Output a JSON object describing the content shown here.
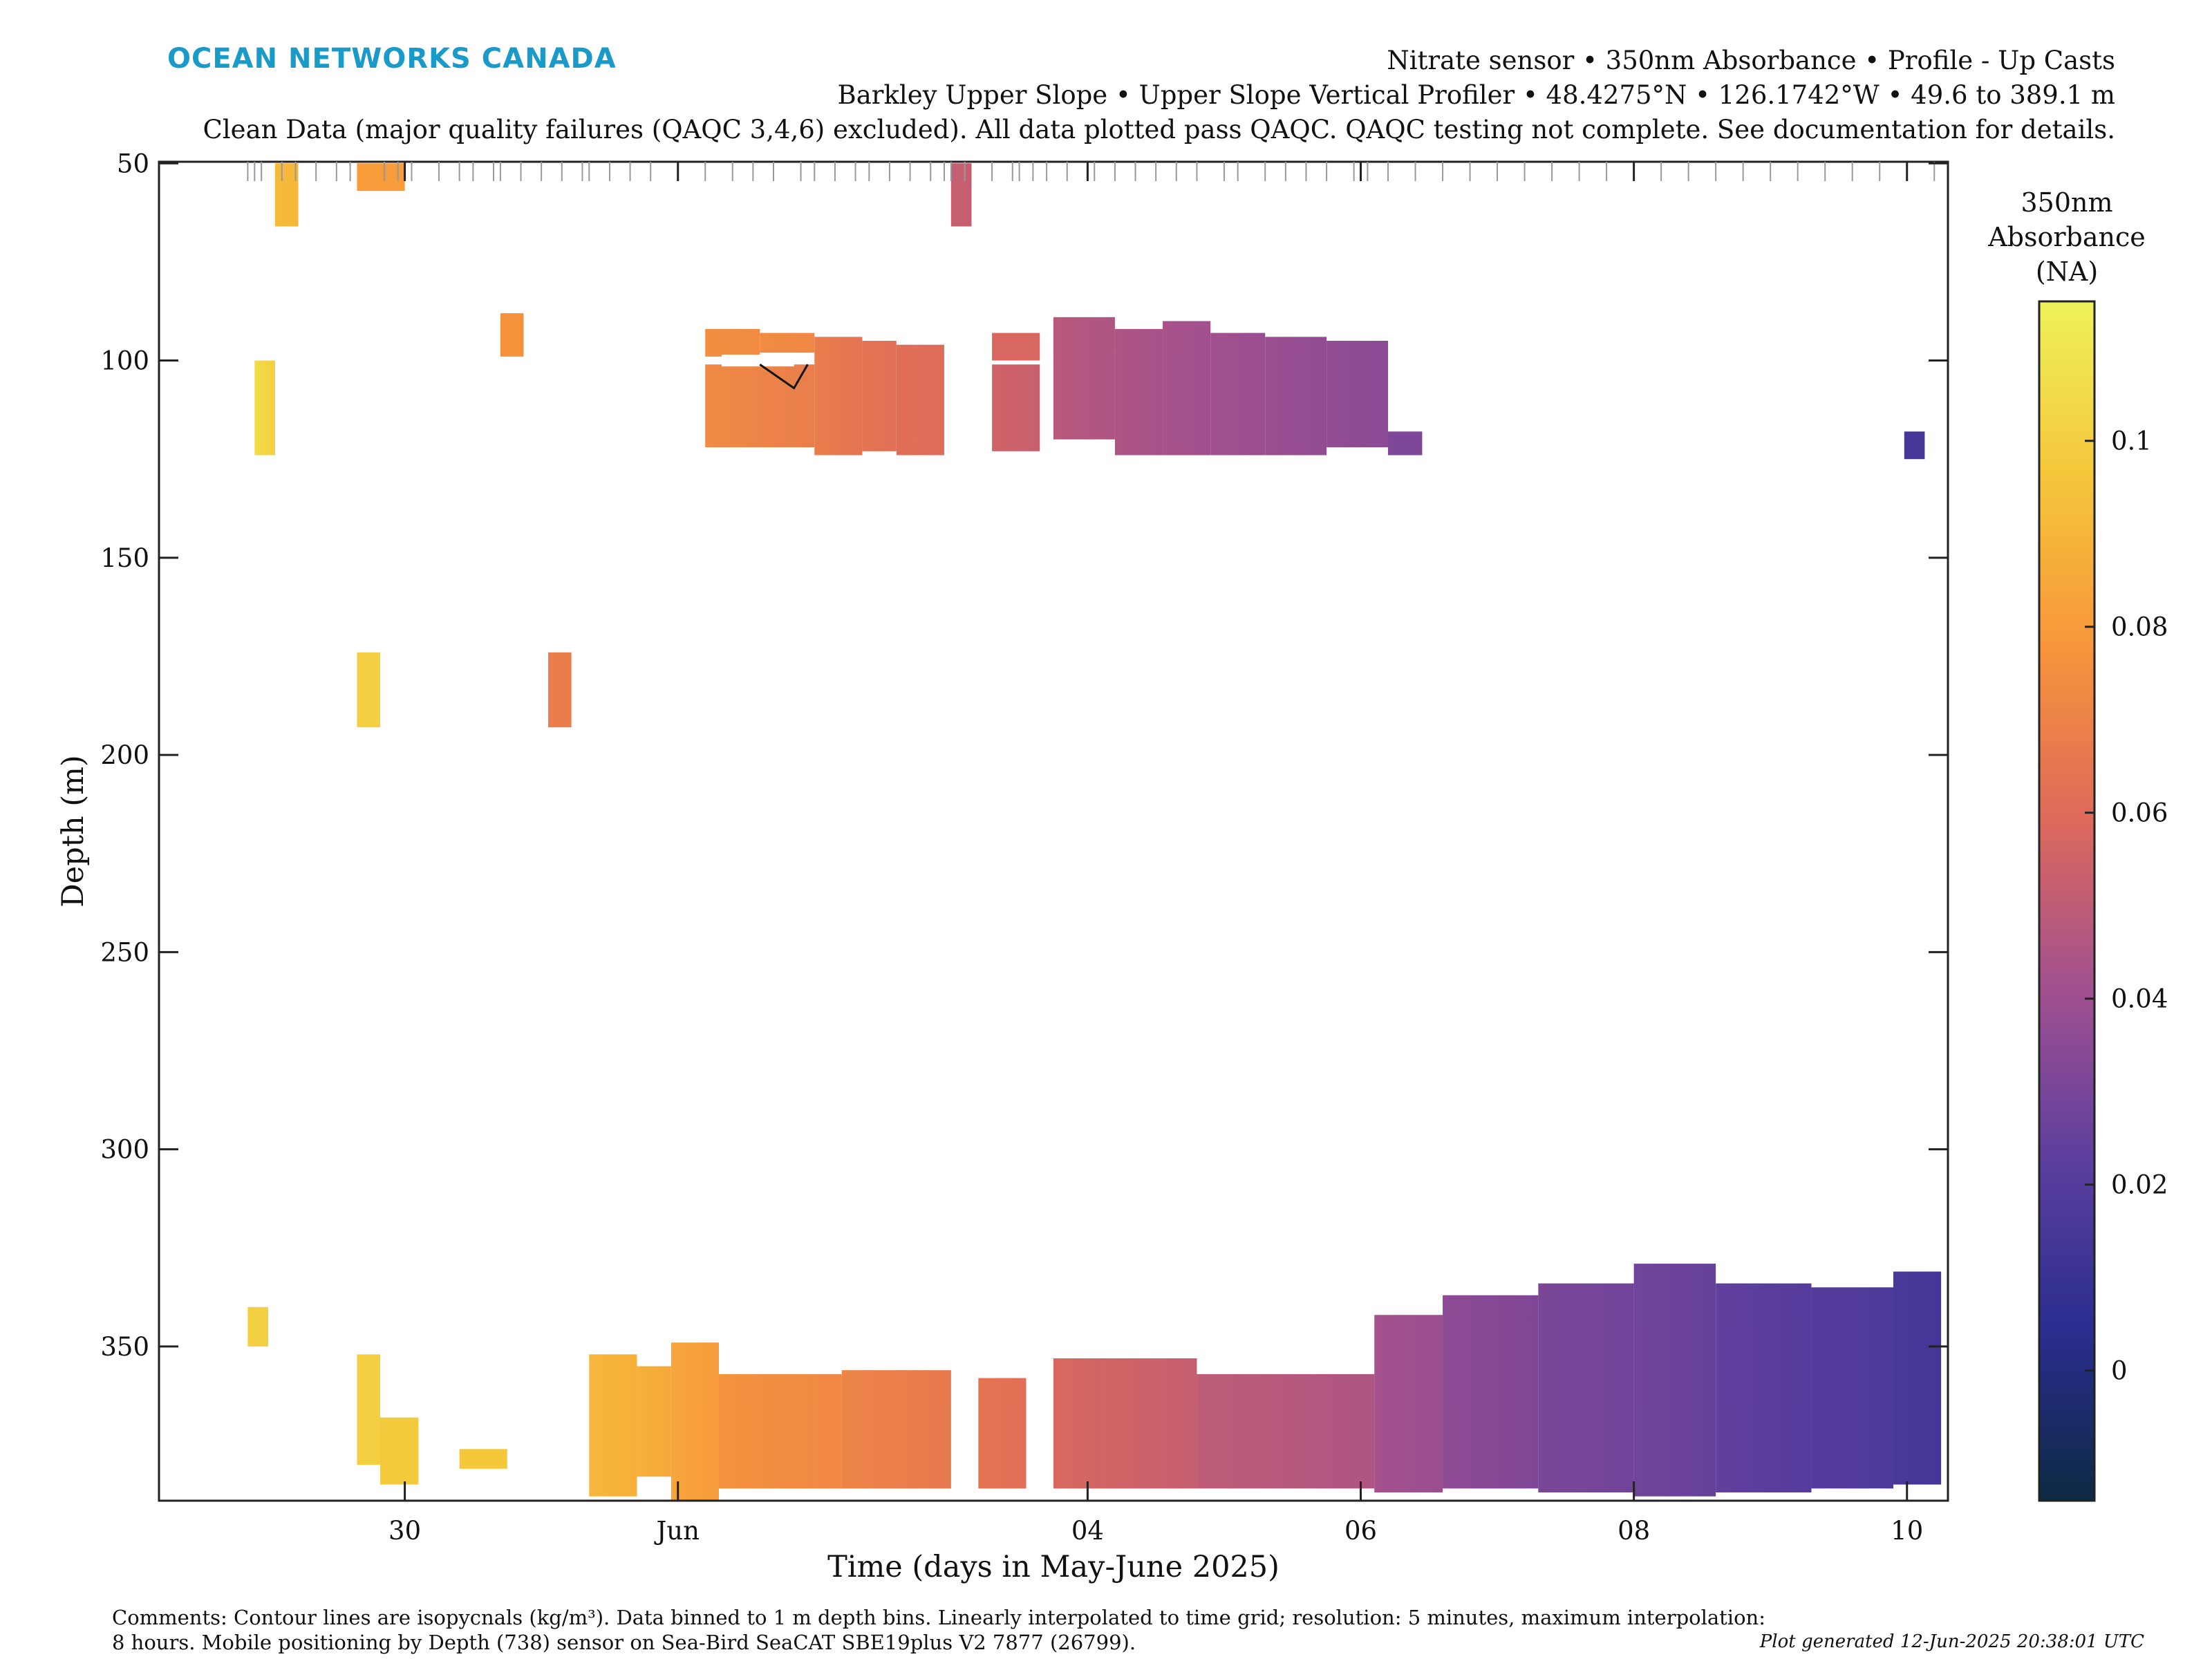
{
  "header": {
    "logo": "OCEAN NETWORKS CANADA",
    "line1": "Nitrate sensor • 350nm Absorbance • Profile - Up Casts",
    "line2": "Barkley Upper Slope • Upper Slope Vertical Profiler • 48.4275°N • 126.1742°W • 49.6 to 389.1 m",
    "line3": "Clean Data (major quality failures (QAQC 3,4,6) excluded). All data plotted pass QAQC. QAQC testing not complete. See documentation for details."
  },
  "footer": {
    "comment1": "Comments: Contour lines are isopycnals (kg/m³). Data binned to 1 m depth bins. Linearly interpolated to time grid; resolution: 5 minutes, maximum interpolation:",
    "comment2": "8 hours. Mobile positioning by Depth (738) sensor on Sea-Bird SeaCAT SBE19plus V2 7877 (26799).",
    "generated": "Plot generated 12-Jun-2025 20:38:01 UTC"
  },
  "colors": {
    "scale": [
      "#0c2a43",
      "#2a2d8f",
      "#5d3f9e",
      "#a2508f",
      "#de6a5a",
      "#f7963b",
      "#f5c73b",
      "#eef25a"
    ]
  },
  "chart_data": {
    "type": "heatmap",
    "title": "",
    "xlabel": "Time (days in May-June 2025)",
    "ylabel": "Depth (m)",
    "x_unit": "days since 2025-05-29 00:00",
    "xlim": [
      -0.8,
      12.3
    ],
    "ylim": [
      389.1,
      49.6
    ],
    "y_reversed": true,
    "xticks": [
      {
        "value": 1,
        "label": "30"
      },
      {
        "value": 3,
        "label": "Jun"
      },
      {
        "value": 6,
        "label": "04"
      },
      {
        "value": 8,
        "label": "06"
      },
      {
        "value": 10,
        "label": "08"
      },
      {
        "value": 12,
        "label": "10"
      }
    ],
    "yticks": [
      50,
      100,
      150,
      200,
      250,
      300,
      350
    ],
    "colorbar": {
      "title": [
        "350nm",
        "Absorbance",
        "(NA)"
      ],
      "range": [
        -0.014,
        0.115
      ],
      "ticks": [
        0,
        0.02,
        0.04,
        0.06,
        0.08,
        0.1
      ],
      "tick_labels": [
        "0",
        "0.02",
        "0.04",
        "0.06",
        "0.08",
        "0.1"
      ]
    },
    "cast_times": [
      -0.15,
      -0.1,
      -0.05,
      0.1,
      0.2,
      0.35,
      0.5,
      0.6,
      0.85,
      0.95,
      1.0,
      1.05,
      1.25,
      1.4,
      1.5,
      1.65,
      1.7,
      1.85,
      2.0,
      2.15,
      2.3,
      2.35,
      2.5,
      2.65,
      2.8,
      3.0,
      3.2,
      3.4,
      3.55,
      3.7,
      3.9,
      4.0,
      4.15,
      4.3,
      4.4,
      4.55,
      4.7,
      4.85,
      4.95,
      5.0,
      5.1,
      5.3,
      5.45,
      5.5,
      5.6,
      5.7,
      5.85,
      6.0,
      6.05,
      6.2,
      6.35,
      6.5,
      6.65,
      6.8,
      7.0,
      7.1,
      7.3,
      7.45,
      7.6,
      7.75,
      7.95,
      8.0,
      8.05,
      8.2,
      8.4,
      8.6,
      8.8,
      9.0,
      9.2,
      9.4,
      9.6,
      9.8,
      10.0,
      10.2,
      10.4,
      10.6,
      10.8,
      11.0,
      11.2,
      11.4,
      11.6,
      11.8,
      12.0,
      12.2
    ],
    "segments": [
      {
        "t0": -0.1,
        "t1": 0.05,
        "d0": 100,
        "d1": 124,
        "v": 0.105,
        "v2": 0.1
      },
      {
        "t0": 0.05,
        "t1": 0.22,
        "d0": 50,
        "d1": 66,
        "v": 0.092,
        "v2": 0.09
      },
      {
        "t0": 0.65,
        "t1": 1.0,
        "d0": 50,
        "d1": 57,
        "v": 0.08,
        "v2": 0.08
      },
      {
        "t0": 0.65,
        "t1": 0.82,
        "d0": 174,
        "d1": 193,
        "v": 0.1,
        "v2": 0.1
      },
      {
        "t0": 1.7,
        "t1": 1.87,
        "d0": 88,
        "d1": 99,
        "v": 0.077,
        "v2": 0.077
      },
      {
        "t0": 2.05,
        "t1": 2.22,
        "d0": 174,
        "d1": 193,
        "v": 0.068,
        "v2": 0.068
      },
      {
        "t0": 3.2,
        "t1": 3.6,
        "d0": 92,
        "d1": 99,
        "v": 0.075,
        "v2": 0.074
      },
      {
        "t0": 3.6,
        "t1": 4.0,
        "d0": 93,
        "d1": 98,
        "v": 0.074,
        "v2": 0.072
      },
      {
        "t0": 3.2,
        "t1": 4.0,
        "d0": 101,
        "d1": 122,
        "v": 0.073,
        "v2": 0.068
      },
      {
        "t0": 4.0,
        "t1": 4.35,
        "d0": 94,
        "d1": 124,
        "v": 0.068,
        "v2": 0.064
      },
      {
        "t0": 4.35,
        "t1": 4.6,
        "d0": 95,
        "d1": 123,
        "v": 0.064,
        "v2": 0.062
      },
      {
        "t0": 4.6,
        "t1": 4.95,
        "d0": 96,
        "d1": 124,
        "v": 0.062,
        "v2": 0.06
      },
      {
        "t0": 5.0,
        "t1": 5.15,
        "d0": 50,
        "d1": 66,
        "v": 0.052,
        "v2": 0.052
      },
      {
        "t0": 5.3,
        "t1": 5.65,
        "d0": 93,
        "d1": 100,
        "v": 0.058,
        "v2": 0.058
      },
      {
        "t0": 5.3,
        "t1": 5.65,
        "d0": 101,
        "d1": 123,
        "v": 0.055,
        "v2": 0.053
      },
      {
        "t0": 5.75,
        "t1": 6.2,
        "d0": 89,
        "d1": 120,
        "v": 0.048,
        "v2": 0.045
      },
      {
        "t0": 6.2,
        "t1": 6.55,
        "d0": 92,
        "d1": 124,
        "v": 0.045,
        "v2": 0.043
      },
      {
        "t0": 6.55,
        "t1": 6.9,
        "d0": 90,
        "d1": 124,
        "v": 0.043,
        "v2": 0.041
      },
      {
        "t0": 6.9,
        "t1": 7.3,
        "d0": 93,
        "d1": 124,
        "v": 0.041,
        "v2": 0.039
      },
      {
        "t0": 7.3,
        "t1": 7.75,
        "d0": 94,
        "d1": 124,
        "v": 0.039,
        "v2": 0.037
      },
      {
        "t0": 7.75,
        "t1": 8.2,
        "d0": 95,
        "d1": 122,
        "v": 0.037,
        "v2": 0.035
      },
      {
        "t0": 8.2,
        "t1": 8.45,
        "d0": 118,
        "d1": 124,
        "v": 0.032,
        "v2": 0.032
      },
      {
        "t0": 11.98,
        "t1": 12.13,
        "d0": 118,
        "d1": 125,
        "v": 0.015,
        "v2": 0.015
      },
      {
        "t0": -0.15,
        "t1": 0.0,
        "d0": 340,
        "d1": 350,
        "v": 0.1,
        "v2": 0.1
      },
      {
        "t0": 0.65,
        "t1": 0.82,
        "d0": 352,
        "d1": 380,
        "v": 0.1,
        "v2": 0.1
      },
      {
        "t0": 0.82,
        "t1": 1.1,
        "d0": 368,
        "d1": 385,
        "v": 0.098,
        "v2": 0.098
      },
      {
        "t0": 1.4,
        "t1": 1.75,
        "d0": 376,
        "d1": 381,
        "v": 0.097,
        "v2": 0.097
      },
      {
        "t0": 2.35,
        "t1": 2.7,
        "d0": 352,
        "d1": 388,
        "v": 0.09,
        "v2": 0.088
      },
      {
        "t0": 2.7,
        "t1": 2.95,
        "d0": 355,
        "d1": 383,
        "v": 0.088,
        "v2": 0.085
      },
      {
        "t0": 2.95,
        "t1": 3.3,
        "d0": 349,
        "d1": 389,
        "v": 0.084,
        "v2": 0.08
      },
      {
        "t0": 3.3,
        "t1": 4.2,
        "d0": 357,
        "d1": 386,
        "v": 0.077,
        "v2": 0.072
      },
      {
        "t0": 4.2,
        "t1": 5.0,
        "d0": 356,
        "d1": 386,
        "v": 0.071,
        "v2": 0.066
      },
      {
        "t0": 5.2,
        "t1": 5.55,
        "d0": 358,
        "d1": 386,
        "v": 0.064,
        "v2": 0.062
      },
      {
        "t0": 5.75,
        "t1": 6.8,
        "d0": 353,
        "d1": 386,
        "v": 0.058,
        "v2": 0.052
      },
      {
        "t0": 6.8,
        "t1": 8.1,
        "d0": 357,
        "d1": 386,
        "v": 0.05,
        "v2": 0.045
      },
      {
        "t0": 8.1,
        "t1": 8.6,
        "d0": 342,
        "d1": 387,
        "v": 0.042,
        "v2": 0.039
      },
      {
        "t0": 8.6,
        "t1": 9.3,
        "d0": 337,
        "d1": 386,
        "v": 0.036,
        "v2": 0.032
      },
      {
        "t0": 9.3,
        "t1": 10.0,
        "d0": 334,
        "d1": 387,
        "v": 0.031,
        "v2": 0.028
      },
      {
        "t0": 10.0,
        "t1": 10.6,
        "d0": 329,
        "d1": 388,
        "v": 0.028,
        "v2": 0.025
      },
      {
        "t0": 10.6,
        "t1": 11.3,
        "d0": 334,
        "d1": 387,
        "v": 0.024,
        "v2": 0.02
      },
      {
        "t0": 11.3,
        "t1": 11.9,
        "d0": 335,
        "d1": 386,
        "v": 0.02,
        "v2": 0.017
      },
      {
        "t0": 11.9,
        "t1": 12.25,
        "d0": 331,
        "d1": 385,
        "v": 0.016,
        "v2": 0.014
      }
    ]
  }
}
